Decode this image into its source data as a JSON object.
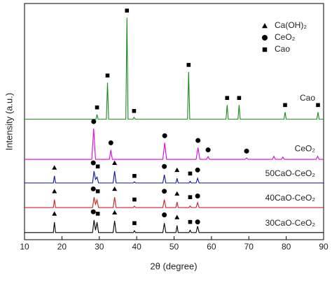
{
  "chart_data": {
    "type": "line",
    "x_label": "2θ (degree)",
    "y_label": "Intensity (a.u.)",
    "xlim": [
      10,
      90
    ],
    "xticks": [
      10,
      20,
      30,
      40,
      50,
      60,
      70,
      80,
      90
    ],
    "ylim": [
      0,
      100
    ],
    "legend": {
      "position": "upper right",
      "entries": [
        {
          "name": "Ca(OH)₂",
          "marker": "triangle"
        },
        {
          "name": "CeO₂",
          "marker": "circle"
        },
        {
          "name": "Cao",
          "marker": "square"
        }
      ]
    },
    "series": [
      {
        "name": "Cao",
        "color": "#1a8a1a",
        "x": [
          10,
          29.1,
          29.4,
          29.7,
          31.9,
          32.2,
          32.5,
          37.1,
          37.4,
          37.7,
          39.0,
          39.3,
          39.6,
          53.6,
          53.9,
          54.2,
          63.9,
          64.2,
          64.5,
          67.1,
          67.4,
          67.7,
          79.4,
          79.7,
          80.0,
          88.2,
          88.5,
          88.8,
          90
        ],
        "values": [
          51,
          51,
          53,
          51,
          51,
          66.5,
          51,
          51,
          94,
          51,
          51,
          51.8,
          51,
          51,
          71,
          51,
          51,
          57,
          51,
          51,
          57,
          51,
          51,
          54,
          51,
          51,
          54,
          51,
          51
        ]
      },
      {
        "name": "CeO₂",
        "color": "#e000e0",
        "x": [
          10,
          28.0,
          28.5,
          29.0,
          32.7,
          33.1,
          33.5,
          47.0,
          47.5,
          48.0,
          55.9,
          56.4,
          56.9,
          58.7,
          59.1,
          59.5,
          69.0,
          69.4,
          69.8,
          76.3,
          76.7,
          77.1,
          78.7,
          79.1,
          79.5,
          88.0,
          88.4,
          88.8,
          90
        ],
        "values": [
          34,
          34,
          47,
          34,
          34,
          38,
          34,
          34,
          41,
          34,
          34,
          39,
          34,
          34,
          35.2,
          34,
          34,
          34.6,
          34,
          34,
          35.3,
          34,
          34,
          35,
          34,
          34,
          35.3,
          34,
          34
        ]
      },
      {
        "name": "50CaO-CeO₂",
        "color": "#1010a0",
        "x": [
          10,
          17.7,
          18.0,
          18.3,
          28.2,
          28.6,
          29.0,
          29.4,
          29.8,
          33.7,
          34.1,
          34.5,
          39.1,
          39.4,
          39.7,
          47.0,
          47.4,
          47.8,
          50.5,
          50.8,
          51.1,
          54.0,
          54.3,
          54.6,
          55.9,
          56.3,
          56.7,
          90
        ],
        "values": [
          24,
          24,
          27,
          24,
          24,
          29,
          25.5,
          26.5,
          24,
          24,
          29,
          24,
          24,
          24.5,
          24,
          24,
          27.5,
          24,
          24,
          26,
          24,
          24,
          24.7,
          24,
          24,
          26,
          24,
          24
        ]
      },
      {
        "name": "40CaO-CeO₂",
        "color": "#d02020",
        "x": [
          10,
          17.7,
          18.0,
          18.3,
          28.2,
          28.6,
          29.0,
          29.4,
          29.8,
          33.7,
          34.1,
          34.5,
          39.1,
          39.4,
          39.7,
          47.0,
          47.4,
          47.8,
          50.5,
          50.8,
          51.1,
          54.0,
          54.3,
          54.6,
          55.9,
          56.3,
          56.7,
          90
        ],
        "values": [
          13.6,
          13.6,
          17,
          13.6,
          13.6,
          18,
          15,
          16.8,
          13.6,
          13.6,
          18,
          13.6,
          13.6,
          14.2,
          13.6,
          13.6,
          17,
          13.6,
          13.6,
          16,
          13.6,
          13.6,
          14.3,
          13.6,
          13.6,
          15.7,
          13.6,
          13.6
        ]
      },
      {
        "name": "30CaO-CeO₂",
        "color": "#000000",
        "x": [
          10,
          17.7,
          18.0,
          18.3,
          28.2,
          28.6,
          29.0,
          29.4,
          29.8,
          33.7,
          34.1,
          34.5,
          39.1,
          39.4,
          39.7,
          47.0,
          47.4,
          47.8,
          50.5,
          50.8,
          51.1,
          54.0,
          54.3,
          54.6,
          55.9,
          56.3,
          56.7,
          90
        ],
        "values": [
          3,
          3,
          7.4,
          3,
          3,
          8.3,
          4,
          7.4,
          3,
          3,
          8,
          3,
          3,
          3.8,
          3,
          3,
          7,
          3,
          3,
          6,
          3,
          3,
          4,
          3,
          3,
          5.7,
          3,
          3
        ]
      }
    ],
    "markers": [
      {
        "x": 29.4,
        "y": 56,
        "phase": 2
      },
      {
        "x": 32.2,
        "y": 69.5,
        "phase": 2
      },
      {
        "x": 37.4,
        "y": 97,
        "phase": 2
      },
      {
        "x": 39.3,
        "y": 54.5,
        "phase": 2
      },
      {
        "x": 53.9,
        "y": 74,
        "phase": 2
      },
      {
        "x": 64.2,
        "y": 60,
        "phase": 2
      },
      {
        "x": 67.4,
        "y": 60,
        "phase": 2
      },
      {
        "x": 79.7,
        "y": 57,
        "phase": 2
      },
      {
        "x": 88.5,
        "y": 57,
        "phase": 2
      },
      {
        "x": 28.5,
        "y": 50,
        "phase": 1
      },
      {
        "x": 33.1,
        "y": 41,
        "phase": 1
      },
      {
        "x": 47.5,
        "y": 44,
        "phase": 1
      },
      {
        "x": 56.4,
        "y": 42,
        "phase": 1
      },
      {
        "x": 59.1,
        "y": 38,
        "phase": 1
      },
      {
        "x": 69.4,
        "y": 37.5,
        "phase": 1
      },
      {
        "x": 18,
        "y": 30.5,
        "phase": 0
      },
      {
        "x": 28.4,
        "y": 32.5,
        "phase": 1
      },
      {
        "x": 29.6,
        "y": 31,
        "phase": 2
      },
      {
        "x": 34.1,
        "y": 32.5,
        "phase": 0
      },
      {
        "x": 39.4,
        "y": 27,
        "phase": 2
      },
      {
        "x": 47.4,
        "y": 31,
        "phase": 1
      },
      {
        "x": 50.8,
        "y": 29.5,
        "phase": 0
      },
      {
        "x": 54.3,
        "y": 28,
        "phase": 2
      },
      {
        "x": 56.3,
        "y": 29.5,
        "phase": 1
      },
      {
        "x": 18,
        "y": 20.5,
        "phase": 0
      },
      {
        "x": 28.4,
        "y": 21.5,
        "phase": 1
      },
      {
        "x": 29.6,
        "y": 20.5,
        "phase": 2
      },
      {
        "x": 34.1,
        "y": 21.5,
        "phase": 0
      },
      {
        "x": 39.4,
        "y": 17,
        "phase": 2
      },
      {
        "x": 47.4,
        "y": 20.5,
        "phase": 1
      },
      {
        "x": 50.8,
        "y": 19.5,
        "phase": 0
      },
      {
        "x": 54.3,
        "y": 18,
        "phase": 2
      },
      {
        "x": 56.3,
        "y": 18.5,
        "phase": 1
      },
      {
        "x": 18,
        "y": 11,
        "phase": 0
      },
      {
        "x": 28.4,
        "y": 11.8,
        "phase": 1
      },
      {
        "x": 29.6,
        "y": 11,
        "phase": 2
      },
      {
        "x": 34.1,
        "y": 11.5,
        "phase": 0
      },
      {
        "x": 39.4,
        "y": 7,
        "phase": 2
      },
      {
        "x": 47.4,
        "y": 10.5,
        "phase": 1
      },
      {
        "x": 50.8,
        "y": 9.5,
        "phase": 0
      },
      {
        "x": 54.3,
        "y": 7.5,
        "phase": 2
      },
      {
        "x": 56.3,
        "y": 7.5,
        "phase": 1
      }
    ]
  }
}
